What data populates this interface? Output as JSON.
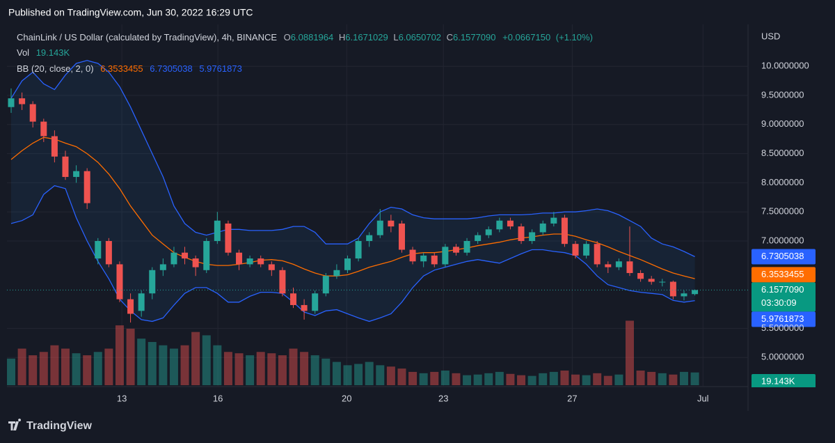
{
  "published": "Published on TradingView.com, Jun 30, 2022 16:29 UTC",
  "brand": "TradingView",
  "chart_data": {
    "type": "candlestick",
    "symbol": "ChainLink / US Dollar (calculated by TradingView), 4h, BINANCE",
    "ohlc_names": [
      "O",
      "H",
      "L",
      "C"
    ],
    "ohlc_value_labels": [
      "6.0881964",
      "6.1671029",
      "6.0650702",
      "6.1577090"
    ],
    "change": 0.066715,
    "change_label": "+0.0667150",
    "change_pct": 1.1,
    "change_pct_label": "(+1.10%)",
    "volume_name": "Vol",
    "volume_label": "19.143K",
    "bb_name": "BB (20, close, 2, 0)",
    "currency": "USD",
    "countdown": "03:30:09",
    "close_label": "6.1577090",
    "up_color": "#26a69a",
    "down_color": "#ef5350",
    "upper_color": "#2962ff",
    "basis_color": "#ff6d00",
    "lower_color": "#2962ff",
    "ylim": [
      4.5,
      10.72
    ],
    "yticks": [
      {
        "value": 10,
        "label": "10.0000000"
      },
      {
        "value": 9.5,
        "label": "9.5000000"
      },
      {
        "value": 9,
        "label": "9.0000000"
      },
      {
        "value": 8.5,
        "label": "8.5000000"
      },
      {
        "value": 8,
        "label": "8.0000000"
      },
      {
        "value": 7.5,
        "label": "7.5000000"
      },
      {
        "value": 7,
        "label": "7.0000000"
      },
      {
        "value": 5.5,
        "label": "5.5000000"
      },
      {
        "value": 5,
        "label": "5.0000000"
      }
    ],
    "xlim": [
      -0.385,
      67.9
    ],
    "xticks": [
      {
        "value": 10.2,
        "label": "13"
      },
      {
        "value": 19.05,
        "label": "16"
      },
      {
        "value": 30.92,
        "label": "20"
      },
      {
        "value": 39.83,
        "label": "23"
      },
      {
        "value": 51.7,
        "label": "27"
      },
      {
        "value": 63.75,
        "label": "Jul"
      }
    ],
    "vlim": [
      0,
      110
    ],
    "candles": [
      [
        9.3,
        9.62,
        9.2,
        9.45
      ],
      [
        9.45,
        9.55,
        9.25,
        9.35
      ],
      [
        9.35,
        9.4,
        8.95,
        9.05
      ],
      [
        9.05,
        9.1,
        8.7,
        8.8
      ],
      [
        8.8,
        8.9,
        8.35,
        8.45
      ],
      [
        8.45,
        8.55,
        8.05,
        8.1
      ],
      [
        8.1,
        8.3,
        8.0,
        8.2
      ],
      [
        8.2,
        8.25,
        7.55,
        7.65
      ],
      [
        6.7,
        7.05,
        6.6,
        7.0
      ],
      [
        7.0,
        7.05,
        6.55,
        6.6
      ],
      [
        6.6,
        6.65,
        5.95,
        6.0
      ],
      [
        6.0,
        6.1,
        5.6,
        5.75
      ],
      [
        5.8,
        6.15,
        5.7,
        6.1
      ],
      [
        6.1,
        6.55,
        6.0,
        6.5
      ],
      [
        6.5,
        6.7,
        6.4,
        6.6
      ],
      [
        6.6,
        6.9,
        6.55,
        6.8
      ],
      [
        6.8,
        6.9,
        6.6,
        6.7
      ],
      [
        6.7,
        6.75,
        6.4,
        6.55
      ],
      [
        6.5,
        7.05,
        6.45,
        7.0
      ],
      [
        7.0,
        7.5,
        6.95,
        7.35
      ],
      [
        7.3,
        7.35,
        6.75,
        6.8
      ],
      [
        6.8,
        6.85,
        6.5,
        6.6
      ],
      [
        6.6,
        6.75,
        6.55,
        6.7
      ],
      [
        6.7,
        6.75,
        6.55,
        6.6
      ],
      [
        6.6,
        6.65,
        6.4,
        6.5
      ],
      [
        6.5,
        6.55,
        6.05,
        6.1
      ],
      [
        6.1,
        6.2,
        5.85,
        5.9
      ],
      [
        5.9,
        6.0,
        5.65,
        5.8
      ],
      [
        5.8,
        6.15,
        5.75,
        6.1
      ],
      [
        6.1,
        6.45,
        6.05,
        6.4
      ],
      [
        6.4,
        6.6,
        6.35,
        6.5
      ],
      [
        6.5,
        6.75,
        6.45,
        6.7
      ],
      [
        6.7,
        7.05,
        6.65,
        7.0
      ],
      [
        7.0,
        7.15,
        6.9,
        7.1
      ],
      [
        7.1,
        7.55,
        7.05,
        7.35
      ],
      [
        7.35,
        7.45,
        7.15,
        7.25
      ],
      [
        7.3,
        7.35,
        6.8,
        6.85
      ],
      [
        6.85,
        6.9,
        6.6,
        6.65
      ],
      [
        6.65,
        6.8,
        6.55,
        6.75
      ],
      [
        6.75,
        6.8,
        6.55,
        6.6
      ],
      [
        6.6,
        6.95,
        6.55,
        6.9
      ],
      [
        6.9,
        6.95,
        6.75,
        6.8
      ],
      [
        6.8,
        7.05,
        6.75,
        7.0
      ],
      [
        7.0,
        7.15,
        6.95,
        7.1
      ],
      [
        7.1,
        7.25,
        7.05,
        7.2
      ],
      [
        7.2,
        7.4,
        7.15,
        7.35
      ],
      [
        7.35,
        7.4,
        7.2,
        7.25
      ],
      [
        7.25,
        7.3,
        6.95,
        7.0
      ],
      [
        7.0,
        7.2,
        6.95,
        7.15
      ],
      [
        7.15,
        7.35,
        7.1,
        7.3
      ],
      [
        7.3,
        7.5,
        7.25,
        7.4
      ],
      [
        7.4,
        7.45,
        6.9,
        6.95
      ],
      [
        6.95,
        7.0,
        6.7,
        6.75
      ],
      [
        6.75,
        7.0,
        6.7,
        6.95
      ],
      [
        6.95,
        7.0,
        6.55,
        6.6
      ],
      [
        6.6,
        6.65,
        6.45,
        6.55
      ],
      [
        6.55,
        6.7,
        6.5,
        6.65
      ],
      [
        6.65,
        7.25,
        6.4,
        6.45
      ],
      [
        6.45,
        6.5,
        6.3,
        6.35
      ],
      [
        6.35,
        6.4,
        6.25,
        6.3
      ],
      [
        6.3,
        6.35,
        6.22,
        6.3
      ],
      [
        6.3,
        6.32,
        6.0,
        6.05
      ],
      [
        6.05,
        6.15,
        5.98,
        6.1
      ],
      [
        6.0881964,
        6.1671029,
        6.0650702,
        6.157709
      ]
    ],
    "volume": [
      40,
      55,
      45,
      50,
      60,
      55,
      48,
      45,
      50,
      55,
      90,
      85,
      70,
      65,
      60,
      55,
      60,
      80,
      75,
      60,
      50,
      48,
      45,
      50,
      48,
      45,
      55,
      50,
      45,
      40,
      35,
      30,
      32,
      35,
      30,
      28,
      25,
      20,
      18,
      20,
      22,
      18,
      15,
      16,
      18,
      20,
      17,
      15,
      14,
      18,
      20,
      22,
      16,
      15,
      18,
      14,
      16,
      97,
      22,
      20,
      18,
      16,
      20,
      19.143
    ],
    "upper": [
      9.45,
      9.75,
      9.9,
      9.7,
      9.6,
      9.85,
      10.05,
      10.1,
      10.05,
      9.9,
      9.65,
      9.3,
      8.9,
      8.5,
      8.1,
      7.6,
      7.3,
      7.15,
      7.1,
      7.15,
      7.2,
      7.2,
      7.18,
      7.18,
      7.18,
      7.2,
      7.25,
      7.25,
      7.15,
      6.95,
      6.95,
      6.95,
      7.05,
      7.3,
      7.5,
      7.58,
      7.55,
      7.45,
      7.4,
      7.38,
      7.38,
      7.38,
      7.38,
      7.4,
      7.43,
      7.45,
      7.45,
      7.45,
      7.46,
      7.48,
      7.48,
      7.5,
      7.5,
      7.52,
      7.55,
      7.52,
      7.45,
      7.35,
      7.25,
      7.05,
      6.95,
      6.9,
      6.82,
      6.7305038
    ],
    "basis": [
      8.4,
      8.55,
      8.68,
      8.78,
      8.75,
      8.68,
      8.62,
      8.5,
      8.35,
      8.15,
      7.9,
      7.6,
      7.35,
      7.1,
      6.95,
      6.8,
      6.72,
      6.65,
      6.6,
      6.58,
      6.58,
      6.6,
      6.63,
      6.67,
      6.68,
      6.66,
      6.6,
      6.52,
      6.45,
      6.4,
      6.4,
      6.42,
      6.48,
      6.55,
      6.6,
      6.65,
      6.72,
      6.78,
      6.8,
      6.8,
      6.82,
      6.85,
      6.88,
      6.92,
      6.95,
      6.98,
      7.02,
      7.05,
      7.07,
      7.1,
      7.12,
      7.12,
      7.08,
      7.02,
      6.97,
      6.9,
      6.82,
      6.75,
      6.68,
      6.6,
      6.52,
      6.45,
      6.4,
      6.3533455
    ],
    "lower": [
      7.3,
      7.35,
      7.45,
      7.8,
      7.95,
      7.9,
      7.4,
      7.0,
      6.65,
      6.35,
      6.0,
      5.8,
      5.65,
      5.62,
      5.68,
      5.9,
      6.1,
      6.2,
      6.2,
      6.1,
      5.95,
      5.95,
      6.05,
      6.12,
      6.12,
      6.1,
      5.95,
      5.78,
      5.72,
      5.8,
      5.82,
      5.75,
      5.68,
      5.62,
      5.68,
      5.75,
      5.95,
      6.2,
      6.4,
      6.5,
      6.55,
      6.6,
      6.65,
      6.68,
      6.65,
      6.62,
      6.7,
      6.78,
      6.85,
      6.85,
      6.82,
      6.8,
      6.75,
      6.6,
      6.4,
      6.25,
      6.2,
      6.15,
      6.12,
      6.1,
      6.08,
      5.98,
      5.95,
      5.9761873
    ]
  }
}
